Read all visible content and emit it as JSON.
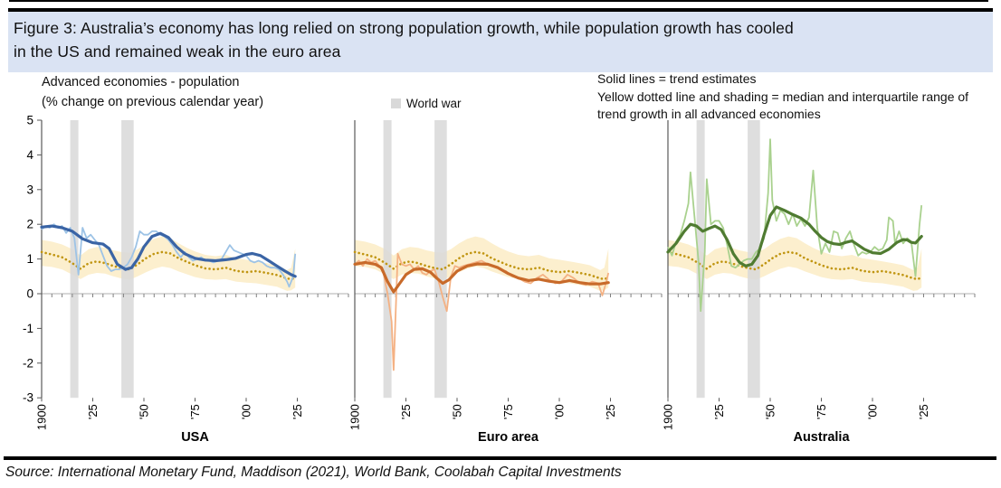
{
  "figure": {
    "title": "Figure 3: Australia’s economy has long relied on strong population growth, while population growth has cooled\nin the US and remained weak in the euro area",
    "source": "Source: International Monetary Fund, Maddison (2021), World Bank, Coolabah Capital Investments"
  },
  "chart_data": {
    "type": "line",
    "title": "Advanced economies - population",
    "subtitle": "(% change on previous calendar year)",
    "legend": {
      "war_label": "World war",
      "note_solid": "Solid lines = trend estimates",
      "note_dotted": "Yellow dotted line and shading = median and interquartile range of trend growth in all advanced economies",
      "legend_position": "top"
    },
    "ylim": [
      -3,
      5
    ],
    "yticks": [
      "5",
      "4",
      "3",
      "2",
      "1",
      "0",
      "-1",
      "-2",
      "-3"
    ],
    "x_range": [
      1900,
      2025
    ],
    "grid": "off",
    "xticks": [
      {
        "year": 1900,
        "label": "1900"
      },
      {
        "year": 1925,
        "label": "'25"
      },
      {
        "year": 1950,
        "label": "'50"
      },
      {
        "year": 1975,
        "label": "'75"
      },
      {
        "year": 2000,
        "label": "'00"
      },
      {
        "year": 2025,
        "label": "'25"
      }
    ],
    "war_bands": [
      [
        1914,
        1918
      ],
      [
        1939,
        1945
      ]
    ],
    "colors": {
      "war_band": "#D9D9D9",
      "iqr_fill": "#FCEFCE",
      "median_dotted": "#C09511",
      "axis": "#808080",
      "axis_dark": "#595959",
      "zero_line": "#BFBFBF",
      "title_bg": "#DAE3F3"
    },
    "median_iqr": {
      "note": "median and interquartile range of trend growth in all advanced economies, repeated in every panel",
      "x": [
        1900,
        1905,
        1910,
        1915,
        1919,
        1923,
        1927,
        1931,
        1935,
        1939,
        1943,
        1947,
        1951,
        1955,
        1959,
        1963,
        1967,
        1971,
        1975,
        1980,
        1985,
        1990,
        1995,
        2000,
        2005,
        2010,
        2015,
        2020,
        2022,
        2024
      ],
      "median": [
        1.2,
        1.13,
        1.05,
        0.88,
        0.72,
        0.88,
        0.93,
        0.88,
        0.8,
        0.74,
        0.7,
        0.85,
        1.02,
        1.15,
        1.2,
        1.16,
        1.02,
        0.92,
        0.82,
        0.73,
        0.7,
        0.75,
        0.66,
        0.62,
        0.65,
        0.6,
        0.54,
        0.44,
        0.42,
        0.46
      ],
      "upper": [
        1.55,
        1.5,
        1.42,
        1.28,
        1.1,
        1.28,
        1.35,
        1.32,
        1.25,
        1.2,
        1.18,
        1.28,
        1.45,
        1.58,
        1.65,
        1.6,
        1.45,
        1.32,
        1.22,
        1.12,
        1.08,
        1.12,
        1.02,
        0.98,
        0.93,
        0.88,
        0.82,
        0.68,
        0.75,
        1.3
      ],
      "lower": [
        0.8,
        0.77,
        0.7,
        0.55,
        0.42,
        0.55,
        0.6,
        0.58,
        0.5,
        0.44,
        0.4,
        0.5,
        0.62,
        0.72,
        0.78,
        0.74,
        0.64,
        0.56,
        0.48,
        0.42,
        0.4,
        0.42,
        0.35,
        0.32,
        0.3,
        0.25,
        0.2,
        0.08,
        0.1,
        0.18
      ]
    },
    "panels": [
      {
        "name": "USA",
        "trend_color": "#3A64A5",
        "raw_color": "#9DC3E6",
        "trend": {
          "x": [
            1900,
            1905,
            1910,
            1915,
            1920,
            1925,
            1930,
            1933,
            1937,
            1941,
            1944,
            1947,
            1950,
            1954,
            1958,
            1962,
            1966,
            1970,
            1975,
            1980,
            1985,
            1990,
            1995,
            2000,
            2003,
            2007,
            2011,
            2015,
            2019,
            2022,
            2024
          ],
          "y": [
            1.92,
            1.95,
            1.9,
            1.8,
            1.58,
            1.47,
            1.43,
            1.3,
            0.85,
            0.7,
            0.75,
            1.0,
            1.35,
            1.65,
            1.74,
            1.62,
            1.35,
            1.15,
            1.02,
            0.97,
            0.95,
            0.98,
            1.02,
            1.13,
            1.16,
            1.1,
            0.95,
            0.8,
            0.65,
            0.55,
            0.5
          ]
        },
        "raw": {
          "x": [
            1900,
            1902,
            1904,
            1906,
            1908,
            1910,
            1912,
            1914,
            1916,
            1918,
            1920,
            1922,
            1924,
            1926,
            1928,
            1930,
            1932,
            1934,
            1936,
            1938,
            1940,
            1942,
            1944,
            1946,
            1948,
            1950,
            1952,
            1954,
            1956,
            1958,
            1960,
            1962,
            1964,
            1966,
            1968,
            1970,
            1972,
            1974,
            1976,
            1978,
            1980,
            1982,
            1984,
            1986,
            1988,
            1990,
            1992,
            1994,
            1996,
            1998,
            2000,
            2002,
            2004,
            2006,
            2008,
            2010,
            2012,
            2014,
            2016,
            2018,
            2020,
            2021,
            2023,
            2024
          ],
          "y": [
            1.85,
            1.95,
            1.9,
            2.0,
            1.9,
            1.95,
            1.75,
            1.9,
            1.6,
            0.55,
            1.9,
            1.6,
            1.7,
            1.55,
            1.4,
            1.1,
            0.8,
            0.65,
            0.7,
            0.7,
            0.75,
            0.85,
            1.05,
            1.35,
            1.8,
            1.7,
            1.7,
            1.8,
            1.8,
            1.7,
            1.65,
            1.55,
            1.4,
            1.2,
            1.05,
            1.2,
            1.05,
            0.95,
            1.0,
            1.05,
            0.95,
            0.95,
            0.9,
            0.95,
            1.0,
            1.2,
            1.4,
            1.25,
            1.2,
            1.15,
            1.1,
            0.95,
            0.9,
            0.95,
            0.9,
            0.8,
            0.75,
            0.75,
            0.7,
            0.55,
            0.35,
            0.2,
            0.5,
            1.15
          ]
        }
      },
      {
        "name": "Euro area",
        "trend_color": "#C86A2A",
        "raw_color": "#F4B183",
        "trend": {
          "x": [
            1900,
            1905,
            1910,
            1913,
            1916,
            1919,
            1922,
            1925,
            1929,
            1933,
            1937,
            1940,
            1943,
            1946,
            1950,
            1955,
            1960,
            1965,
            1970,
            1975,
            1980,
            1985,
            1990,
            1995,
            2000,
            2005,
            2010,
            2015,
            2020,
            2024
          ],
          "y": [
            0.85,
            0.9,
            0.85,
            0.75,
            0.35,
            0.05,
            0.3,
            0.55,
            0.7,
            0.72,
            0.62,
            0.45,
            0.3,
            0.4,
            0.65,
            0.8,
            0.86,
            0.85,
            0.75,
            0.58,
            0.45,
            0.38,
            0.42,
            0.36,
            0.32,
            0.38,
            0.32,
            0.28,
            0.28,
            0.32
          ]
        },
        "raw": {
          "x": [
            1900,
            1902,
            1904,
            1906,
            1908,
            1910,
            1912,
            1914,
            1916,
            1918,
            1919,
            1921,
            1923,
            1925,
            1927,
            1929,
            1931,
            1933,
            1935,
            1937,
            1939,
            1941,
            1943,
            1945,
            1947,
            1949,
            1951,
            1953,
            1956,
            1959,
            1962,
            1965,
            1968,
            1971,
            1974,
            1977,
            1980,
            1983,
            1986,
            1989,
            1992,
            1995,
            1998,
            2001,
            2004,
            2007,
            2010,
            2013,
            2016,
            2019,
            2021,
            2023,
            2024
          ],
          "y": [
            0.85,
            0.95,
            0.8,
            1.0,
            0.9,
            0.95,
            0.8,
            0.6,
            0.0,
            -0.8,
            -2.2,
            1.15,
            0.85,
            0.8,
            0.85,
            0.7,
            0.8,
            0.6,
            0.55,
            0.65,
            0.7,
            0.35,
            -0.1,
            -0.5,
            0.5,
            0.8,
            0.75,
            0.8,
            0.85,
            0.9,
            0.95,
            0.85,
            0.8,
            0.7,
            0.65,
            0.5,
            0.45,
            0.35,
            0.3,
            0.45,
            0.55,
            0.4,
            0.3,
            0.35,
            0.55,
            0.45,
            0.3,
            0.25,
            0.35,
            0.3,
            -0.05,
            0.35,
            0.6
          ]
        }
      },
      {
        "name": "Australia",
        "trend_color": "#4F7B31",
        "raw_color": "#A9D18E",
        "trend": {
          "x": [
            1900,
            1904,
            1908,
            1911,
            1914,
            1917,
            1920,
            1923,
            1926,
            1929,
            1932,
            1935,
            1938,
            1941,
            1944,
            1947,
            1950,
            1953,
            1957,
            1961,
            1965,
            1969,
            1972,
            1975,
            1978,
            1981,
            1984,
            1987,
            1990,
            1993,
            1996,
            2000,
            2004,
            2008,
            2012,
            2015,
            2017,
            2019,
            2021,
            2024
          ],
          "y": [
            1.2,
            1.45,
            1.8,
            2.0,
            1.95,
            1.8,
            1.88,
            1.95,
            1.85,
            1.55,
            1.15,
            0.9,
            0.8,
            0.85,
            1.1,
            1.7,
            2.25,
            2.5,
            2.4,
            2.28,
            2.18,
            2.0,
            1.8,
            1.62,
            1.5,
            1.44,
            1.42,
            1.48,
            1.52,
            1.4,
            1.28,
            1.18,
            1.16,
            1.28,
            1.48,
            1.56,
            1.55,
            1.48,
            1.46,
            1.65
          ]
        },
        "raw": {
          "x": [
            1900,
            1902,
            1904,
            1906,
            1908,
            1910,
            1911,
            1913,
            1915,
            1916,
            1918,
            1919,
            1921,
            1923,
            1925,
            1927,
            1929,
            1931,
            1933,
            1935,
            1937,
            1939,
            1941,
            1943,
            1945,
            1947,
            1949,
            1950,
            1951,
            1953,
            1955,
            1957,
            1959,
            1961,
            1963,
            1965,
            1967,
            1969,
            1971,
            1973,
            1975,
            1977,
            1979,
            1981,
            1983,
            1985,
            1987,
            1989,
            1991,
            1993,
            1995,
            1997,
            1999,
            2001,
            2003,
            2005,
            2007,
            2008,
            2010,
            2011,
            2013,
            2015,
            2017,
            2019,
            2021,
            2023,
            2024
          ],
          "y": [
            1.35,
            1.1,
            1.5,
            1.7,
            2.1,
            2.6,
            3.5,
            2.2,
            0.9,
            -0.5,
            1.2,
            3.3,
            2.0,
            2.1,
            2.1,
            1.9,
            1.4,
            0.8,
            0.75,
            0.85,
            0.95,
            1.0,
            1.0,
            1.2,
            1.3,
            1.6,
            2.9,
            4.45,
            2.7,
            2.1,
            2.4,
            2.3,
            2.0,
            2.3,
            1.95,
            2.15,
            1.95,
            2.2,
            3.55,
            1.9,
            1.15,
            1.45,
            1.2,
            1.8,
            1.75,
            1.3,
            1.6,
            1.8,
            1.4,
            1.1,
            1.2,
            1.15,
            1.2,
            1.35,
            1.25,
            1.3,
            1.55,
            2.2,
            2.1,
            1.45,
            1.8,
            1.45,
            1.6,
            1.5,
            0.5,
            2.0,
            2.55
          ]
        }
      }
    ]
  }
}
